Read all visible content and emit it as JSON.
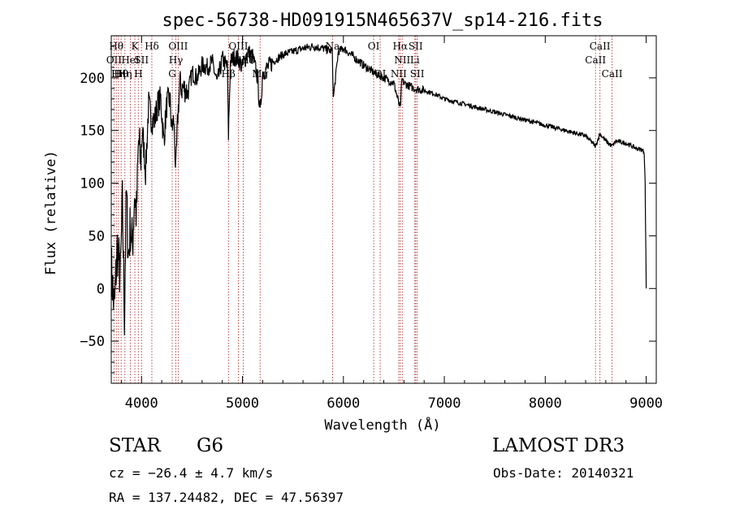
{
  "chart_data": {
    "type": "line",
    "title": "spec-56738-HD091915N465637V_sp14-216.fits",
    "xlabel": "Wavelength (Å)",
    "ylabel": "Flux (relative)",
    "xlim": [
      3700,
      9100
    ],
    "ylim": [
      -90,
      240
    ],
    "xticks": [
      4000,
      5000,
      6000,
      7000,
      8000,
      9000
    ],
    "yticks": [
      -50,
      0,
      50,
      100,
      150,
      200
    ],
    "series": [
      {
        "name": "spectrum",
        "x": [
          3700,
          3730,
          3760,
          3790,
          3810,
          3830,
          3850,
          3870,
          3890,
          3910,
          3930,
          3950,
          3970,
          3990,
          4010,
          4040,
          4070,
          4100,
          4130,
          4160,
          4190,
          4220,
          4250,
          4280,
          4300,
          4320,
          4340,
          4360,
          4380,
          4400,
          4430,
          4460,
          4500,
          4550,
          4600,
          4650,
          4700,
          4750,
          4800,
          4850,
          4861,
          4880,
          4920,
          4960,
          5000,
          5050,
          5100,
          5150,
          5175,
          5200,
          5250,
          5300,
          5400,
          5500,
          5600,
          5700,
          5800,
          5890,
          5900,
          5950,
          6000,
          6100,
          6200,
          6300,
          6400,
          6500,
          6563,
          6580,
          6600,
          6700,
          6800,
          6900,
          7000,
          7200,
          7400,
          7600,
          7800,
          8000,
          8200,
          8400,
          8498,
          8542,
          8600,
          8662,
          8700,
          8800,
          8900,
          8950,
          8980,
          8990,
          9000
        ],
        "values": [
          20,
          -20,
          40,
          10,
          80,
          -25,
          90,
          30,
          60,
          40,
          90,
          70,
          140,
          120,
          150,
          110,
          175,
          160,
          160,
          175,
          180,
          140,
          175,
          180,
          150,
          160,
          110,
          165,
          195,
          190,
          190,
          185,
          205,
          200,
          212,
          210,
          215,
          195,
          218,
          210,
          145,
          215,
          220,
          218,
          210,
          225,
          220,
          200,
          165,
          205,
          210,
          215,
          222,
          225,
          228,
          230,
          228,
          225,
          180,
          225,
          228,
          220,
          212,
          205,
          200,
          195,
          170,
          198,
          195,
          190,
          188,
          185,
          180,
          175,
          170,
          165,
          160,
          155,
          150,
          145,
          135,
          147,
          140,
          135,
          140,
          138,
          133,
          132,
          130,
          100,
          0
        ]
      }
    ],
    "line_markers": [
      {
        "wavelength": 3727,
        "label": "OII",
        "row": 2
      },
      {
        "wavelength": 3750,
        "label": "Hθ",
        "row": 1
      },
      {
        "wavelength": 3771,
        "label": "Hη",
        "row": 3
      },
      {
        "wavelength": 3798,
        "label": "Hθ",
        "row": 3
      },
      {
        "wavelength": 3835,
        "label": "Hη",
        "row": 3
      },
      {
        "wavelength": 3889,
        "label": "HeI",
        "row": 2
      },
      {
        "wavelength": 3934,
        "label": "K",
        "row": 1
      },
      {
        "wavelength": 3968,
        "label": "H",
        "row": 3
      },
      {
        "wavelength": 4000,
        "label": "SII",
        "row": 2
      },
      {
        "wavelength": 4102,
        "label": "Hδ",
        "row": 1
      },
      {
        "wavelength": 4304,
        "label": "G",
        "row": 3
      },
      {
        "wavelength": 4340,
        "label": "Hγ",
        "row": 2
      },
      {
        "wavelength": 4363,
        "label": "OIII",
        "row": 1
      },
      {
        "wavelength": 4861,
        "label": "Hβ",
        "row": 3
      },
      {
        "wavelength": 4959,
        "label": "OIII",
        "row": 1
      },
      {
        "wavelength": 5007,
        "label": "OIII",
        "row": 2
      },
      {
        "wavelength": 5175,
        "label": "Mg",
        "row": 3
      },
      {
        "wavelength": 5893,
        "label": "Na",
        "row": 1
      },
      {
        "wavelength": 6300,
        "label": "OI",
        "row": 1
      },
      {
        "wavelength": 6364,
        "label": "OI",
        "row": 3
      },
      {
        "wavelength": 6548,
        "label": "NII",
        "row": 3
      },
      {
        "wavelength": 6563,
        "label": "Hα",
        "row": 1
      },
      {
        "wavelength": 6583,
        "label": "NII",
        "row": 2
      },
      {
        "wavelength": 6708,
        "label": "Li",
        "row": 2
      },
      {
        "wavelength": 6716,
        "label": "SII",
        "row": 1
      },
      {
        "wavelength": 6731,
        "label": "SII",
        "row": 3
      },
      {
        "wavelength": 8498,
        "label": "CaII",
        "row": 2
      },
      {
        "wavelength": 8542,
        "label": "CaII",
        "row": 1
      },
      {
        "wavelength": 8662,
        "label": "CaII",
        "row": 3
      }
    ],
    "grid": false,
    "legend": "none"
  },
  "info": {
    "object_class": "STAR",
    "subclass": "G6",
    "survey": "LAMOST DR3",
    "redshift_line": "cz = −26.4 ± 4.7 km/s",
    "obs_date": "Obs-Date: 20140321",
    "coordinates": "RA = 137.24482, DEC =  47.56397"
  },
  "colors": {
    "spectrum": "#000000",
    "markers": "#b03030",
    "axes": "#000000",
    "background": "#ffffff"
  }
}
